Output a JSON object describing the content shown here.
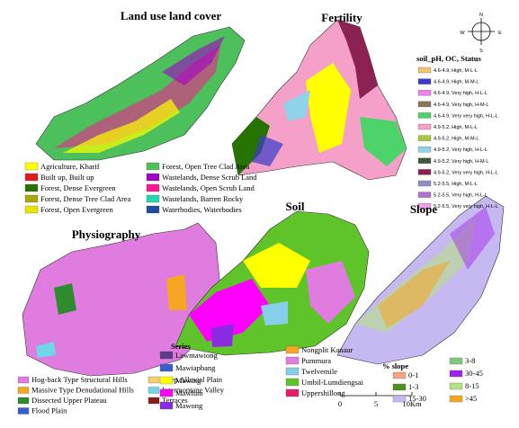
{
  "panels": [
    {
      "title": "Land use land cover",
      "legend": {
        "items": [
          {
            "label": "Agriculture, Kharif",
            "color": "#ffff00"
          },
          {
            "label": "Built up, Built up",
            "color": "#e31a1c"
          },
          {
            "label": "Forest, Dense Evergreen",
            "color": "#267300"
          },
          {
            "label": "Forest, Dense Tree Clad Area",
            "color": "#a8a800"
          },
          {
            "label": "Forest, Open Evergreen",
            "color": "#e6e600"
          },
          {
            "label": "Forest, Open Tree Clad Area",
            "color": "#4cc05a"
          },
          {
            "label": "Wastelands, Dense Scrub Land",
            "color": "#a000c8"
          },
          {
            "label": "Wastelands, Open Scrub Land",
            "color": "#ff1493"
          },
          {
            "label": "Wastelands, Barren Rocky",
            "color": "#1fd9b0"
          },
          {
            "label": "Waterbodies, Waterbodies",
            "color": "#1f4e9e"
          }
        ]
      }
    },
    {
      "title": "Fertility",
      "legend": {
        "title": "soil_pH, OC, Status",
        "items": [
          {
            "label": "4.6-4.9, High, M-L-L",
            "color": "#f2c46b"
          },
          {
            "label": "4.6-4.9, High, M-M-L",
            "color": "#3a3acb"
          },
          {
            "label": "4.6-4.9, Very  high, H-L-L",
            "color": "#ee82ee"
          },
          {
            "label": "4.6-4.9, Very  high, H-M-L",
            "color": "#8b7355"
          },
          {
            "label": "4.6-4.9, Very very high, H-L-L",
            "color": "#4cd46a"
          },
          {
            "label": "4.9-5.2, High, M-L-L",
            "color": "#f4a0c8"
          },
          {
            "label": "4.9-5.2, High, M-M-L",
            "color": "#a8c83c"
          },
          {
            "label": "4.9-5.2, Very high, H-L-L",
            "color": "#8fd3e8"
          },
          {
            "label": "4.9-5.2, Very high, H-M-L",
            "color": "#3c5a3c"
          },
          {
            "label": "4.9-5.2, Very very high, H-L-L",
            "color": "#8b2252"
          },
          {
            "label": "5.2-5.5, High, M-L-L",
            "color": "#8f8fc8"
          },
          {
            "label": "5.2-5.5, Very high, H-L-L",
            "color": "#b070d0"
          },
          {
            "label": "5.2-5.5, Very very high, H-L-L",
            "color": "#f0a0f0"
          }
        ]
      }
    },
    {
      "title": "Physiography",
      "legend": {
        "items": [
          {
            "label": "Hog-back Type Structural Hills",
            "color": "#e07be0"
          },
          {
            "label": "Massive Type Denudational Hills",
            "color": "#f5a623"
          },
          {
            "label": "Dissected Upper Plateau",
            "color": "#2e8b2e"
          },
          {
            "label": "Flood Plain",
            "color": "#3a5fcd"
          },
          {
            "label": "Deep Alluvial Plain",
            "color": "#f5d06b"
          },
          {
            "label": "Intermontane Valley",
            "color": "#6fd6e8"
          },
          {
            "label": "Terraces",
            "color": "#8b1a1a"
          }
        ]
      }
    },
    {
      "title": "Soil",
      "legend": {
        "title": "Series",
        "items": [
          {
            "label": "Lawmawiong",
            "color": "#5a3a8a"
          },
          {
            "label": "Mawiapbang",
            "color": "#3a5fcd"
          },
          {
            "label": "Mawing",
            "color": "#ffff00"
          },
          {
            "label": "Mawlum",
            "color": "#ff00ff"
          },
          {
            "label": "Mawong",
            "color": "#8a2be2"
          },
          {
            "label": "Nongplit Kanaur",
            "color": "#f5a623"
          },
          {
            "label": "Pummura",
            "color": "#e07be0"
          },
          {
            "label": "Twelvemile",
            "color": "#87ceeb"
          },
          {
            "label": "Umbil-Lumdiengsai",
            "color": "#5ec42a"
          },
          {
            "label": "Uppershillong",
            "color": "#e81a6a"
          }
        ]
      }
    },
    {
      "title": "Slope",
      "legend": {
        "title": "% slope",
        "items": [
          {
            "label": "0-1",
            "color": "#f4a582"
          },
          {
            "label": "1-3",
            "color": "#4d9221"
          },
          {
            "label": "15-30",
            "color": "#c6b8f0"
          },
          {
            "label": "3-8",
            "color": "#7fc97f"
          },
          {
            "label": "30-45",
            "color": "#a020f0"
          },
          {
            "label": "8-15",
            "color": "#b8e186"
          },
          {
            "label": ">45",
            "color": "#f5a623"
          }
        ]
      }
    }
  ],
  "compass": {
    "n": "N",
    "e": "E",
    "s": "S",
    "w": "W"
  },
  "scale_bar": [
    "0",
    "5",
    "10Km"
  ]
}
